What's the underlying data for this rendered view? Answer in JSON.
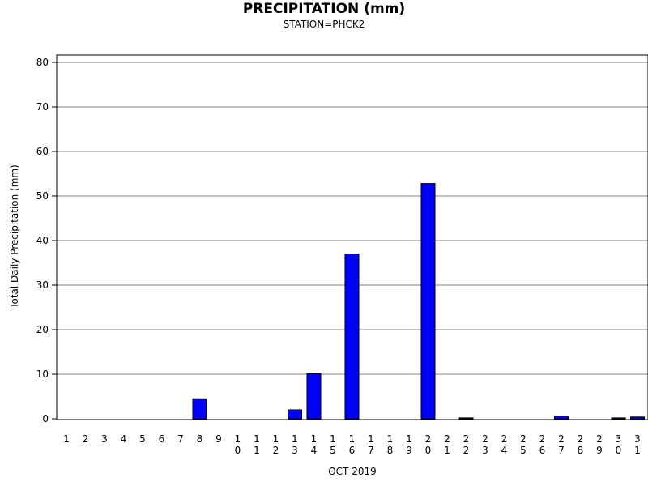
{
  "chart_data": {
    "type": "bar",
    "title": "PRECIPITATION (mm)",
    "subtitle": "STATION=PHCK2",
    "xlabel": "OCT 2019",
    "ylabel": "Total Daily Precipitation (mm)",
    "ylim": [
      0,
      80
    ],
    "yticks": [
      0,
      10,
      20,
      30,
      40,
      50,
      60,
      70,
      80
    ],
    "grid": true,
    "bar_color": "#0000ff",
    "categories": [
      "1",
      "2",
      "3",
      "4",
      "5",
      "6",
      "7",
      "8",
      "9",
      "10",
      "11",
      "12",
      "13",
      "14",
      "15",
      "16",
      "17",
      "18",
      "19",
      "20",
      "21",
      "22",
      "23",
      "24",
      "25",
      "26",
      "27",
      "28",
      "29",
      "30",
      "31"
    ],
    "values": [
      0,
      0,
      0,
      0,
      0,
      0,
      0,
      4.5,
      0,
      0,
      0,
      0,
      2.0,
      10.1,
      0,
      37.0,
      0,
      0,
      0,
      52.8,
      0,
      0.2,
      0,
      0,
      0,
      0,
      0.6,
      0,
      0,
      0.2,
      0.4
    ]
  }
}
